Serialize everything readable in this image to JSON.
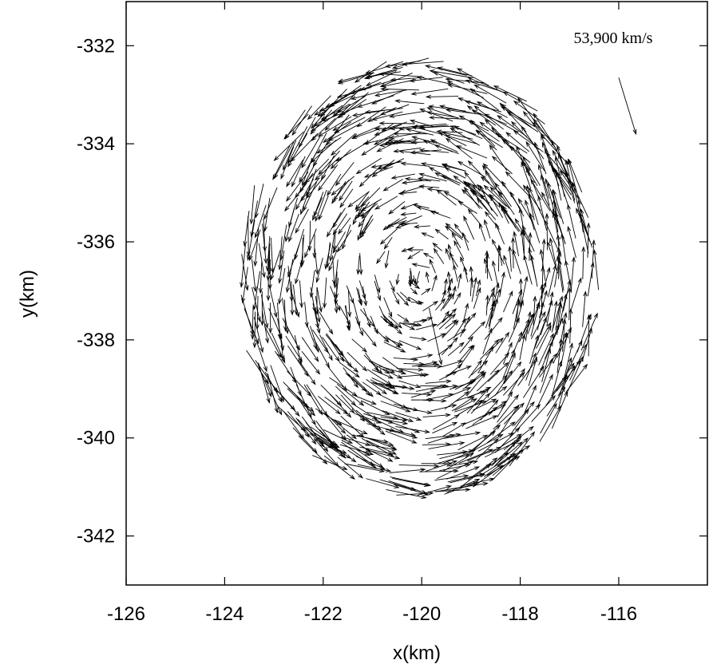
{
  "chart_data": {
    "type": "vector-field",
    "title": "",
    "xlabel": "x(km)",
    "ylabel": "y(km)",
    "xlim": [
      -126,
      -114.2
    ],
    "ylim": [
      -343,
      -331.1
    ],
    "x_ticks": [
      -126,
      -124,
      -122,
      -120,
      -118,
      -116
    ],
    "x_tick_labels": [
      "-126",
      "-124",
      "-122",
      "-120",
      "-118",
      "-116"
    ],
    "y_ticks": [
      -332,
      -334,
      -336,
      -338,
      -340,
      -342
    ],
    "y_tick_labels": [
      "-332",
      "-334",
      "-336",
      "-338",
      "-340",
      "-342"
    ],
    "grid": false,
    "field": {
      "center": [
        -120.05,
        -336.75
      ],
      "radius_x": 3.6,
      "radius_y": 4.4,
      "rotation": "counter-clockwise",
      "approx_arrow_count": 1000
    },
    "central_arrow": {
      "from": [
        -119.85,
        -337.35
      ],
      "to": [
        -119.6,
        -338.5
      ]
    },
    "reference_arrow": {
      "label": "53,900 km/s",
      "from": [
        -116.0,
        -332.65
      ],
      "to": [
        -115.65,
        -333.8
      ]
    },
    "colors": {
      "arrows": "#000000",
      "axes": "#000000",
      "background": "#ffffff"
    }
  }
}
